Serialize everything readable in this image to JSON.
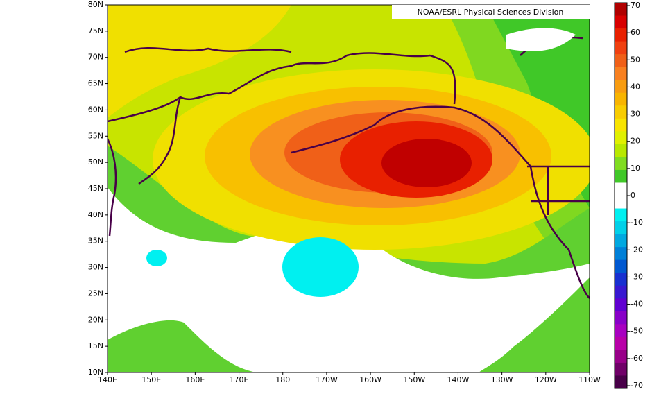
{
  "map": {
    "credit": "NOAA/ESRL Physical Sciences Division",
    "lat_labels": [
      "80N",
      "75N",
      "70N",
      "65N",
      "60N",
      "55N",
      "50N",
      "45N",
      "40N",
      "35N",
      "30N",
      "25N",
      "20N",
      "15N",
      "10N"
    ],
    "lon_labels": [
      "140E",
      "150E",
      "160E",
      "170E",
      "180",
      "170W",
      "160W",
      "150W",
      "140W",
      "130W",
      "120W",
      "110W"
    ]
  },
  "colorbar": {
    "labels": [
      "70",
      "60",
      "50",
      "40",
      "30",
      "20",
      "10",
      "0",
      "-10",
      "-20",
      "-30",
      "-40",
      "-50",
      "-60",
      "-70"
    ],
    "colors": [
      "#b00000",
      "#d80000",
      "#e82000",
      "#f04010",
      "#f06018",
      "#f88020",
      "#f89c10",
      "#f8b400",
      "#f8cc00",
      "#f8e400",
      "#e0f000",
      "#b8e800",
      "#80dc20",
      "#40c828",
      "#ffffff",
      "#ffffff",
      "#00f0f0",
      "#00d0e8",
      "#00a8e0",
      "#0080d8",
      "#0058d0",
      "#1830d0",
      "#3818d0",
      "#6000d0",
      "#8800c8",
      "#a800c0",
      "#b800a8",
      "#980088",
      "#700068",
      "#480048"
    ]
  }
}
